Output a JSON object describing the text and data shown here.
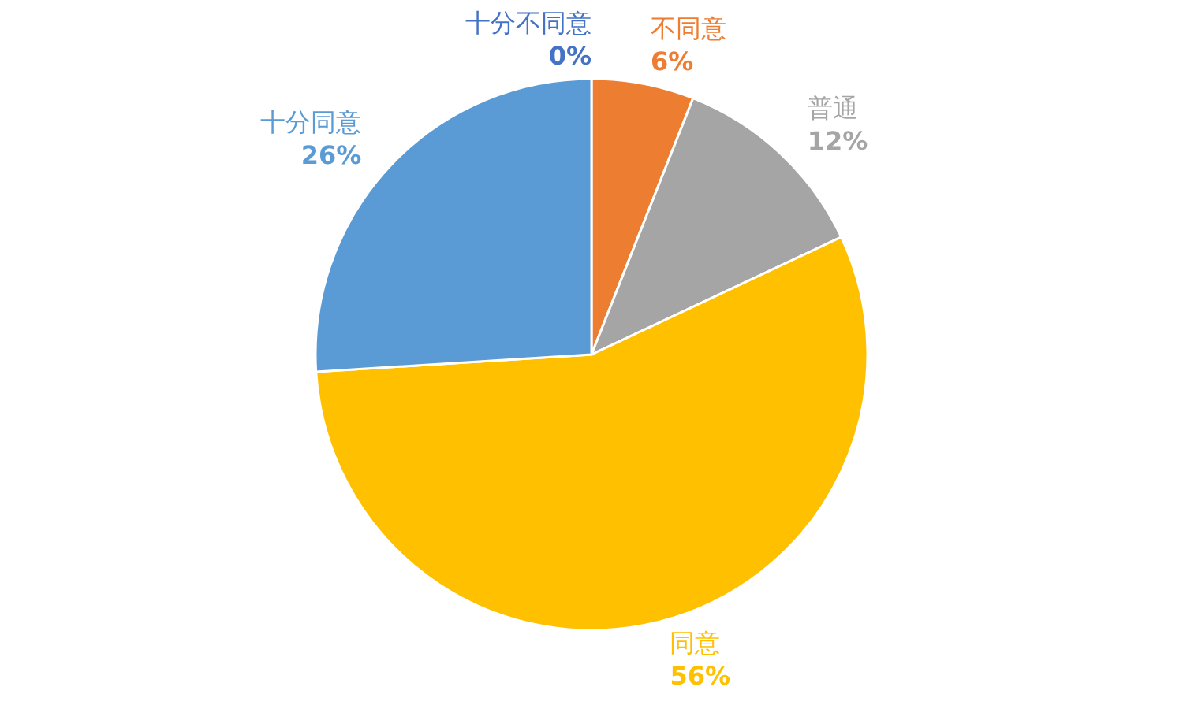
{
  "chart_data": {
    "type": "pie",
    "categories": [
      "十分不同意",
      "不同意",
      "普通",
      "同意",
      "十分同意"
    ],
    "values": [
      0,
      6,
      12,
      56,
      26
    ],
    "value_labels": [
      "0%",
      "6%",
      "12%",
      "56%",
      "26%"
    ],
    "colors": [
      "#4472c4",
      "#ed7d31",
      "#a5a5a5",
      "#ffc000",
      "#5b9bd5"
    ]
  }
}
